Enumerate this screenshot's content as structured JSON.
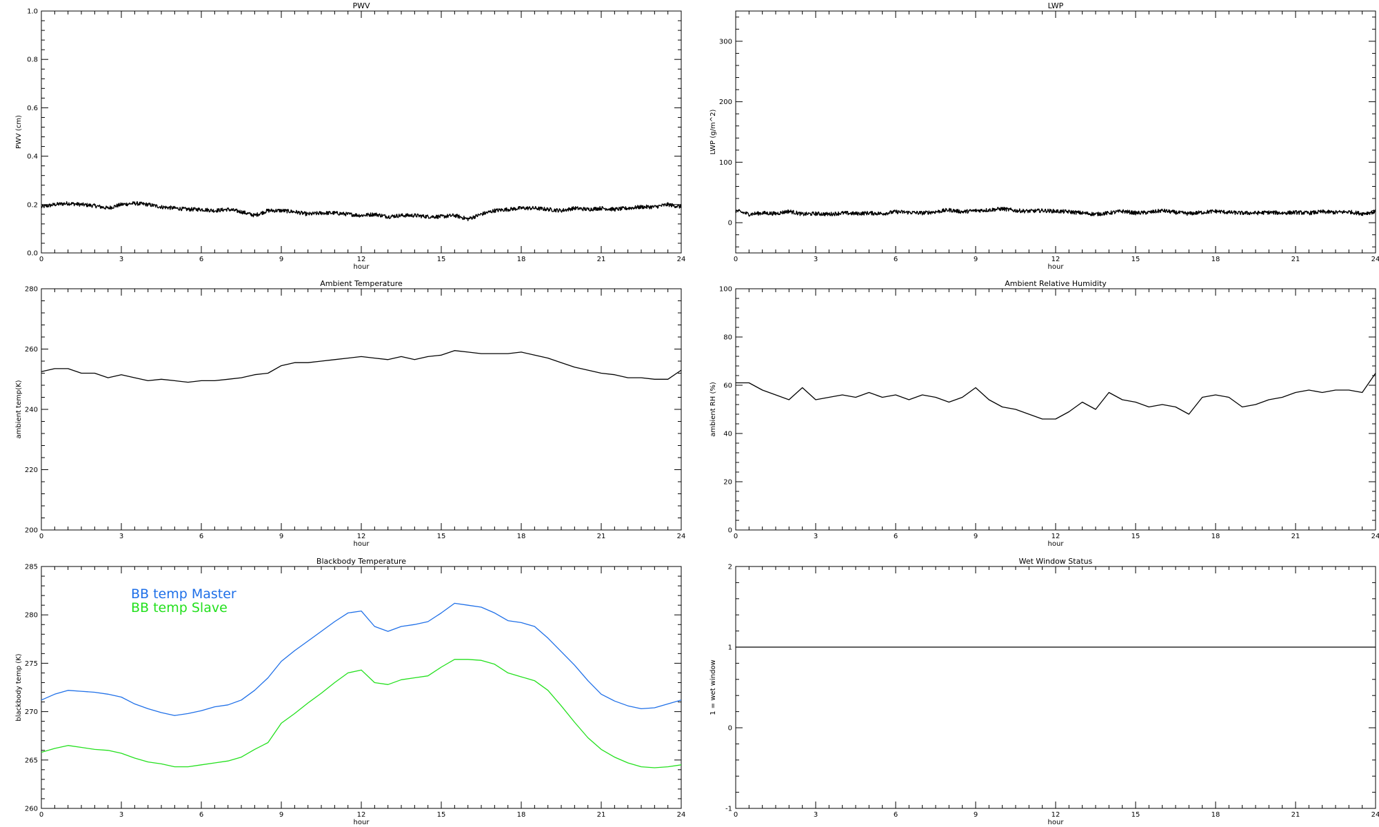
{
  "chart_data": [
    {
      "id": "pwv",
      "type": "line",
      "title": "PWV",
      "xlabel": "hour",
      "ylabel": "PWV (cm)",
      "xlim": [
        0,
        24
      ],
      "ylim": [
        0.0,
        1.0
      ],
      "xticks": [
        "0",
        "3",
        "6",
        "9",
        "12",
        "15",
        "18",
        "21",
        "24"
      ],
      "yticks": [
        "0.0",
        "0.2",
        "0.4",
        "0.6",
        "0.8",
        "1.0"
      ],
      "noisy": true,
      "series": [
        {
          "color": "#000000",
          "x": [
            0,
            0.5,
            1,
            1.5,
            2,
            2.5,
            3,
            3.5,
            4,
            4.5,
            5,
            5.5,
            6,
            6.5,
            7,
            7.5,
            8,
            8.5,
            9,
            9.5,
            10,
            10.5,
            11,
            11.5,
            12,
            12.5,
            13,
            13.5,
            14,
            14.5,
            15,
            15.5,
            16,
            16.5,
            17,
            17.5,
            18,
            18.5,
            19,
            19.5,
            20,
            20.5,
            21,
            21.5,
            22,
            22.5,
            23,
            23.5,
            24
          ],
          "y": [
            0.19,
            0.2,
            0.205,
            0.2,
            0.195,
            0.185,
            0.2,
            0.205,
            0.2,
            0.19,
            0.185,
            0.18,
            0.18,
            0.175,
            0.18,
            0.17,
            0.155,
            0.175,
            0.175,
            0.17,
            0.16,
            0.165,
            0.165,
            0.16,
            0.155,
            0.16,
            0.15,
            0.155,
            0.155,
            0.15,
            0.15,
            0.155,
            0.14,
            0.16,
            0.175,
            0.18,
            0.185,
            0.185,
            0.18,
            0.175,
            0.185,
            0.18,
            0.185,
            0.18,
            0.185,
            0.19,
            0.19,
            0.2,
            0.19
          ]
        }
      ]
    },
    {
      "id": "lwp",
      "type": "line",
      "title": "LWP",
      "xlabel": "hour",
      "ylabel": "LWP (g/m^2)",
      "xlim": [
        0,
        24
      ],
      "ylim": [
        -50,
        350
      ],
      "xticks": [
        "0",
        "3",
        "6",
        "9",
        "12",
        "15",
        "18",
        "21",
        "24"
      ],
      "yticks": [
        "0",
        "100",
        "200",
        "300"
      ],
      "ytick_values": [
        0,
        100,
        200,
        300
      ],
      "noisy": true,
      "series": [
        {
          "color": "#000000",
          "x": [
            0,
            0.5,
            1,
            1.5,
            2,
            2.5,
            3,
            3.5,
            4,
            4.5,
            5,
            5.5,
            6,
            6.5,
            7,
            7.5,
            8,
            8.5,
            9,
            9.5,
            10,
            10.5,
            11,
            11.5,
            12,
            12.5,
            13,
            13.5,
            14,
            14.5,
            15,
            15.5,
            16,
            16.5,
            17,
            17.5,
            18,
            18.5,
            19,
            19.5,
            20,
            20.5,
            21,
            21.5,
            22,
            22.5,
            23,
            23.5,
            24
          ],
          "y": [
            20,
            14,
            16,
            15,
            19,
            14,
            15,
            14,
            16,
            15,
            16,
            15,
            18,
            17,
            16,
            18,
            21,
            18,
            20,
            21,
            23,
            20,
            19,
            20,
            19,
            18,
            16,
            14,
            16,
            19,
            16,
            17,
            20,
            17,
            15,
            17,
            19,
            17,
            16,
            16,
            17,
            16,
            17,
            16,
            18,
            17,
            18,
            15,
            18
          ]
        }
      ]
    },
    {
      "id": "ambient-temperature",
      "type": "line",
      "title": "Ambient Temperature",
      "xlabel": "hour",
      "ylabel": "ambient temp(K)",
      "xlim": [
        0,
        24
      ],
      "ylim": [
        200,
        280
      ],
      "xticks": [
        "0",
        "3",
        "6",
        "9",
        "12",
        "15",
        "18",
        "21",
        "24"
      ],
      "yticks": [
        "200",
        "220",
        "240",
        "260",
        "280"
      ],
      "series": [
        {
          "color": "#000000",
          "x": [
            0,
            0.5,
            1,
            1.5,
            2,
            2.5,
            3,
            3.5,
            4,
            4.5,
            5,
            5.5,
            6,
            6.5,
            7,
            7.5,
            8,
            8.5,
            9,
            9.5,
            10,
            10.5,
            11,
            11.5,
            12,
            12.5,
            13,
            13.5,
            14,
            14.5,
            15,
            15.5,
            16,
            16.5,
            17,
            17.5,
            18,
            18.5,
            19,
            19.5,
            20,
            20.5,
            21,
            21.5,
            22,
            22.5,
            23,
            23.5,
            24
          ],
          "y": [
            252.5,
            253.5,
            253.5,
            252,
            252,
            250.5,
            251.5,
            250.5,
            249.5,
            250,
            249.5,
            249,
            249.5,
            249.5,
            250,
            250.5,
            251.5,
            252,
            254.5,
            255.5,
            255.5,
            256,
            256.5,
            257,
            257.5,
            257,
            256.5,
            257.5,
            256.5,
            257.5,
            258,
            259.5,
            259,
            258.5,
            258.5,
            258.5,
            259,
            258,
            257,
            255.5,
            254,
            253,
            252,
            251.5,
            250.5,
            250.5,
            250,
            250,
            253
          ]
        }
      ]
    },
    {
      "id": "ambient-relative-humidity",
      "type": "line",
      "title": "Ambient Relative Humidity",
      "xlabel": "hour",
      "ylabel": "ambient RH (%)",
      "xlim": [
        0,
        24
      ],
      "ylim": [
        0,
        100
      ],
      "xticks": [
        "0",
        "3",
        "6",
        "9",
        "12",
        "15",
        "18",
        "21",
        "24"
      ],
      "yticks": [
        "0",
        "20",
        "40",
        "60",
        "80",
        "100"
      ],
      "series": [
        {
          "color": "#000000",
          "x": [
            0,
            0.5,
            1,
            1.5,
            2,
            2.5,
            3,
            3.5,
            4,
            4.5,
            5,
            5.5,
            6,
            6.5,
            7,
            7.5,
            8,
            8.5,
            9,
            9.5,
            10,
            10.5,
            11,
            11.5,
            12,
            12.5,
            13,
            13.5,
            14,
            14.5,
            15,
            15.5,
            16,
            16.5,
            17,
            17.5,
            18,
            18.5,
            19,
            19.5,
            20,
            20.5,
            21,
            21.5,
            22,
            22.5,
            23,
            23.5,
            24
          ],
          "y": [
            61,
            61,
            58,
            56,
            54,
            59,
            54,
            55,
            56,
            55,
            57,
            55,
            56,
            54,
            56,
            55,
            53,
            55,
            59,
            54,
            51,
            50,
            48,
            46,
            46,
            49,
            53,
            50,
            57,
            54,
            53,
            51,
            52,
            51,
            48,
            55,
            56,
            55,
            51,
            52,
            54,
            55,
            57,
            58,
            57,
            58,
            58,
            57,
            65
          ]
        }
      ]
    },
    {
      "id": "blackbody-temperature",
      "type": "line",
      "title": "Blackbody Temperature",
      "xlabel": "hour",
      "ylabel": "blackbody temp (K)",
      "xlim": [
        0,
        24
      ],
      "ylim": [
        260,
        285
      ],
      "xticks": [
        "0",
        "3",
        "6",
        "9",
        "12",
        "15",
        "18",
        "21",
        "24"
      ],
      "yticks": [
        "260",
        "265",
        "270",
        "275",
        "280",
        "285"
      ],
      "legend_position": "top-left",
      "series": [
        {
          "name": "BB temp Master",
          "color": "#1e6fe8",
          "x": [
            0,
            0.5,
            1,
            1.5,
            2,
            2.5,
            3,
            3.5,
            4,
            4.5,
            5,
            5.5,
            6,
            6.5,
            7,
            7.5,
            8,
            8.5,
            9,
            9.5,
            10,
            10.5,
            11,
            11.5,
            12,
            12.5,
            13,
            13.5,
            14,
            14.5,
            15,
            15.5,
            16,
            16.5,
            17,
            17.5,
            18,
            18.5,
            19,
            19.5,
            20,
            20.5,
            21,
            21.5,
            22,
            22.5,
            23,
            23.5,
            24
          ],
          "y": [
            271.2,
            271.8,
            272.2,
            272.1,
            272,
            271.8,
            271.5,
            270.8,
            270.3,
            269.9,
            269.6,
            269.8,
            270.1,
            270.5,
            270.7,
            271.2,
            272.2,
            273.5,
            275.2,
            276.3,
            277.3,
            278.3,
            279.3,
            280.2,
            280.4,
            278.8,
            278.3,
            278.8,
            279,
            279.3,
            280.2,
            281.2,
            281,
            280.8,
            280.2,
            279.4,
            279.2,
            278.8,
            277.6,
            276.2,
            274.8,
            273.2,
            271.8,
            271.1,
            270.6,
            270.3,
            270.4,
            270.8,
            271.2
          ]
        },
        {
          "name": "BB temp Slave",
          "color": "#22e01c",
          "x": [
            0,
            0.5,
            1,
            1.5,
            2,
            2.5,
            3,
            3.5,
            4,
            4.5,
            5,
            5.5,
            6,
            6.5,
            7,
            7.5,
            8,
            8.5,
            9,
            9.5,
            10,
            10.5,
            11,
            11.5,
            12,
            12.5,
            13,
            13.5,
            14,
            14.5,
            15,
            15.5,
            16,
            16.5,
            17,
            17.5,
            18,
            18.5,
            19,
            19.5,
            20,
            20.5,
            21,
            21.5,
            22,
            22.5,
            23,
            23.5,
            24
          ],
          "y": [
            265.8,
            266.2,
            266.5,
            266.3,
            266.1,
            266,
            265.7,
            265.2,
            264.8,
            264.6,
            264.3,
            264.3,
            264.5,
            264.7,
            264.9,
            265.3,
            266.1,
            266.8,
            268.8,
            269.8,
            270.9,
            271.9,
            273,
            274,
            274.3,
            273,
            272.8,
            273.3,
            273.5,
            273.7,
            274.6,
            275.4,
            275.4,
            275.3,
            274.9,
            274,
            273.6,
            273.2,
            272.2,
            270.6,
            268.9,
            267.3,
            266.1,
            265.3,
            264.7,
            264.3,
            264.2,
            264.3,
            264.5
          ]
        }
      ]
    },
    {
      "id": "wet-window-status",
      "type": "line",
      "title": "Wet Window Status",
      "xlabel": "hour",
      "ylabel": "1 = wet window",
      "xlim": [
        0,
        24
      ],
      "ylim": [
        -1,
        2
      ],
      "xticks": [
        "0",
        "3",
        "6",
        "9",
        "12",
        "15",
        "18",
        "21",
        "24"
      ],
      "yticks": [
        "-1",
        "0",
        "1",
        "2"
      ],
      "series": [
        {
          "color": "#000000",
          "x": [
            0,
            24
          ],
          "y": [
            1,
            1
          ]
        }
      ]
    }
  ]
}
